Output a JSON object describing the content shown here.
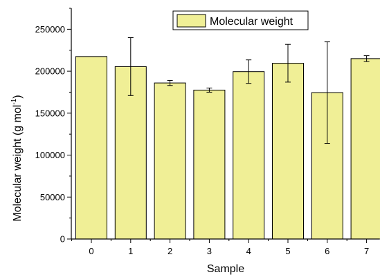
{
  "chart_data": {
    "type": "bar",
    "categories": [
      "0",
      "1",
      "2",
      "3",
      "4",
      "5",
      "6",
      "7"
    ],
    "values": [
      217500,
      205500,
      186000,
      177500,
      199500,
      209500,
      174500,
      215000
    ],
    "errors": [
      0,
      34500,
      3000,
      2500,
      14000,
      22500,
      60500,
      3500
    ],
    "xlabel": "Sample",
    "ylabel_main": "Molecular weight (g mol",
    "ylabel_sup": "-1",
    "ylabel_close": ")",
    "ylim": [
      0,
      275000
    ],
    "yticks": [
      0,
      50000,
      100000,
      150000,
      200000,
      250000
    ],
    "ytick_labels": [
      "0",
      "50000",
      "100000",
      "150000",
      "200000",
      "250000"
    ],
    "legend": {
      "label": "Molecular weight",
      "position": "top-right"
    },
    "bar_color": "#f0ef96",
    "bar_edge_color": "#000000"
  }
}
